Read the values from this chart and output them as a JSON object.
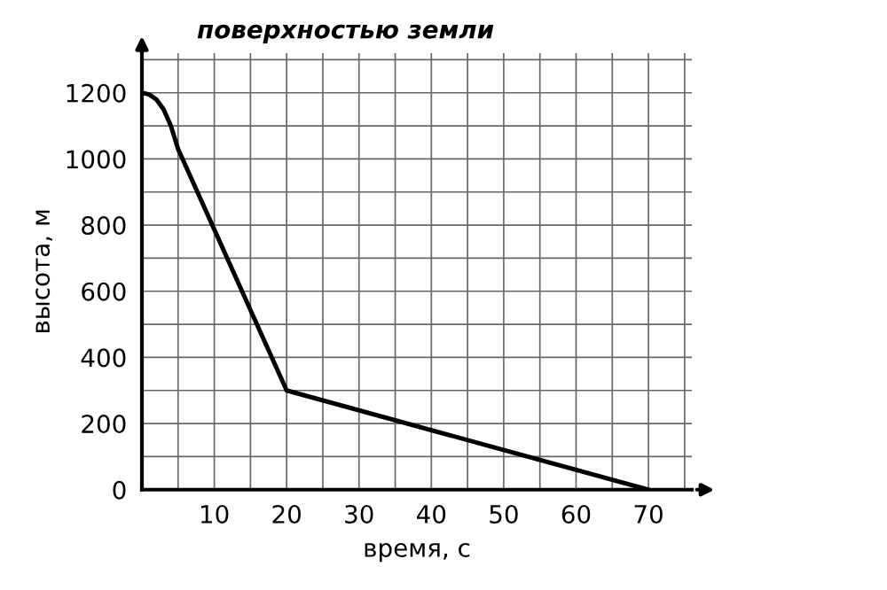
{
  "chart_data": {
    "type": "line",
    "title": "поверхностью земли",
    "xlabel": "время, с",
    "ylabel": "высота, м",
    "x": [
      0,
      1,
      2,
      3,
      4,
      5,
      20,
      70
    ],
    "series": [
      {
        "color": "#000000",
        "values": [
          1200,
          1195,
          1180,
          1150,
          1100,
          1030,
          300,
          0
        ]
      }
    ],
    "xlim": [
      0,
      76
    ],
    "ylim": [
      0,
      1320
    ],
    "xticks": [
      {
        "value": 5,
        "label": null
      },
      10,
      {
        "value": 15,
        "label": null
      },
      20,
      {
        "value": 25,
        "label": null
      },
      30,
      {
        "value": 35,
        "label": null
      },
      40,
      {
        "value": 45,
        "label": null
      },
      50,
      {
        "value": 55,
        "label": null
      },
      60,
      {
        "value": 65,
        "label": null
      },
      70,
      {
        "value": 75,
        "label": null
      }
    ],
    "yticks": [
      0,
      {
        "value": 100,
        "label": null
      },
      200,
      {
        "value": 300,
        "label": null
      },
      400,
      {
        "value": 500,
        "label": null
      },
      600,
      {
        "value": 700,
        "label": null
      },
      800,
      {
        "value": 900,
        "label": null
      },
      1000,
      {
        "value": 1100,
        "label": null
      },
      1200,
      {
        "value": 1300,
        "label": null
      }
    ],
    "grid": true,
    "marker": "none",
    "line_style": "solid"
  }
}
